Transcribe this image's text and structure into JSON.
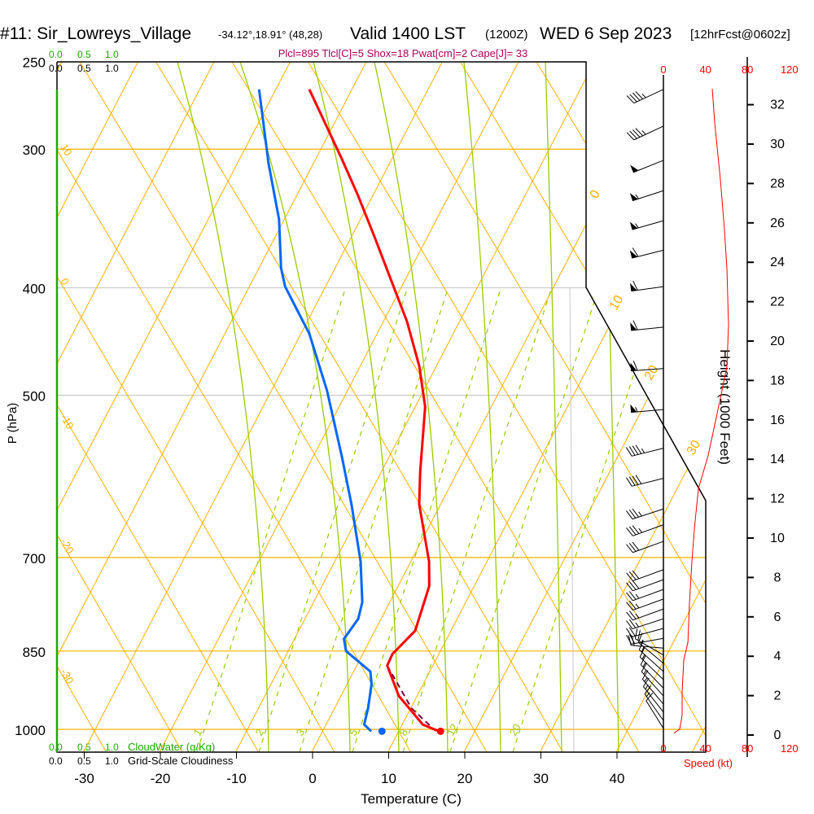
{
  "title": {
    "station": "#11: Sir_Lowreys_Village",
    "coords": "-34.12°,18.91° (48,28)",
    "valid": "Valid 1400 LST",
    "utc": "(1200Z)",
    "date": "WED 6 Sep 2023",
    "forecast": "[12hrFcst@0602z]"
  },
  "indices": "Plcl=895 Tlcl[C]=5 Shox=18 Pwat[cm]=2 Cape[J]= 33",
  "cloud": {
    "ticks": [
      "0.0",
      "0.5",
      "1.0"
    ],
    "cloudwater_label": "CloudWater (g/Kg)",
    "cloudiness_label": "Grid-Scale Cloudiness",
    "top_extra": "0",
    "cloudwater_color": "#1aaa00"
  },
  "chart_data": {
    "type": "line",
    "subtype": "skew-t log-p",
    "xlabel": "Temperature (C)",
    "ylabel": "P (hPa)",
    "x_ticks": [
      -30,
      -20,
      -10,
      0,
      10,
      20,
      30,
      40
    ],
    "pressure_ticks": [
      250,
      300,
      400,
      500,
      700,
      850,
      1000
    ],
    "xlim": [
      -33.6,
      51.7
    ],
    "plim": [
      1048,
      250
    ],
    "isotherm_labels": [
      "0",
      "10",
      "20",
      "30"
    ],
    "dry_adiabat_labels": [
      "10",
      "0",
      "-10",
      "-20",
      "-30"
    ],
    "mixing_ratio_labels": [
      "1",
      "2",
      "3",
      "5",
      "8",
      "12",
      "20"
    ],
    "temperature": {
      "name": "Temperature",
      "color": "#ff0000",
      "points": [
        [
          265,
          -45.6
        ],
        [
          306,
          -36.6
        ],
        [
          330,
          -32.0
        ],
        [
          359,
          -27.1
        ],
        [
          429,
          -16.9
        ],
        [
          471,
          -12.2
        ],
        [
          512,
          -8.7
        ],
        [
          586,
          -4.9
        ],
        [
          627,
          -2.8
        ],
        [
          706,
          2.4
        ],
        [
          743,
          4.1
        ],
        [
          815,
          5.3
        ],
        [
          855,
          3.9
        ],
        [
          876,
          4.0
        ],
        [
          933,
          7.6
        ],
        [
          990,
          12.7
        ],
        [
          1003,
          15.1
        ]
      ]
    },
    "dewpoint": {
      "name": "Dewpoint",
      "color": "#0066ff",
      "points": [
        [
          265,
          -52.2
        ],
        [
          309,
          -45.9
        ],
        [
          347,
          -40.7
        ],
        [
          384,
          -37.1
        ],
        [
          399,
          -35.3
        ],
        [
          440,
          -28.9
        ],
        [
          495,
          -22.7
        ],
        [
          567,
          -16.3
        ],
        [
          627,
          -11.7
        ],
        [
          706,
          -6.6
        ],
        [
          768,
          -3.6
        ],
        [
          795,
          -3.0
        ],
        [
          829,
          -3.5
        ],
        [
          850,
          -2.4
        ],
        [
          887,
          2.2
        ],
        [
          910,
          3.2
        ],
        [
          957,
          4.4
        ],
        [
          990,
          5.0
        ],
        [
          1004,
          6.4
        ]
      ]
    },
    "parcel": {
      "name": "Parcel",
      "color": "#800040",
      "points": [
        [
          876,
          4.0
        ],
        [
          957,
          10.1
        ],
        [
          1003,
          14.8
        ]
      ]
    },
    "surface_temperature": 15.5,
    "surface_dewpoint": 7.8,
    "wind_speed": {
      "xlabel": "Speed (kt)",
      "ylabel": "Height (1000 Feet)",
      "speed_ticks": [
        0,
        40,
        80,
        120
      ],
      "height_ticks": [
        0,
        2,
        4,
        6,
        8,
        10,
        12,
        14,
        16,
        18,
        20,
        22,
        24,
        26,
        28,
        30,
        32
      ],
      "color": "#ff0000",
      "points": [
        [
          32.8,
          46.5
        ],
        [
          31.1,
          48.8
        ],
        [
          28.2,
          54.3
        ],
        [
          25.7,
          58.1
        ],
        [
          23.7,
          60.5
        ],
        [
          20.8,
          62.0
        ],
        [
          18.7,
          60.5
        ],
        [
          17.1,
          54.3
        ],
        [
          14.2,
          42.6
        ],
        [
          12.5,
          33.3
        ],
        [
          10.5,
          29.5
        ],
        [
          8.8,
          27.1
        ],
        [
          6.7,
          24.8
        ],
        [
          4.7,
          23.3
        ],
        [
          3.8,
          19.4
        ],
        [
          2.2,
          17.8
        ],
        [
          1.0,
          17.8
        ],
        [
          0.3,
          15.5
        ],
        [
          0.1,
          10.1
        ]
      ]
    },
    "wind_barbs": [
      {
        "p": 265,
        "speed": 46,
        "dir": 245
      },
      {
        "p": 286,
        "speed": 47,
        "dir": 245
      },
      {
        "p": 307,
        "speed": 52,
        "dir": 248
      },
      {
        "p": 327,
        "speed": 57,
        "dir": 252
      },
      {
        "p": 348,
        "speed": 58,
        "dir": 254
      },
      {
        "p": 370,
        "speed": 60,
        "dir": 256
      },
      {
        "p": 399,
        "speed": 62,
        "dir": 262
      },
      {
        "p": 434,
        "speed": 62,
        "dir": 264
      },
      {
        "p": 473,
        "speed": 60,
        "dir": 266
      },
      {
        "p": 515,
        "speed": 55,
        "dir": 265
      },
      {
        "p": 558,
        "speed": 45,
        "dir": 256
      },
      {
        "p": 594,
        "speed": 40,
        "dir": 256
      },
      {
        "p": 633,
        "speed": 38,
        "dir": 252
      },
      {
        "p": 654,
        "speed": 35,
        "dir": 250
      },
      {
        "p": 677,
        "speed": 33,
        "dir": 250
      },
      {
        "p": 718,
        "speed": 30,
        "dir": 250
      },
      {
        "p": 733,
        "speed": 30,
        "dir": 250
      },
      {
        "p": 748,
        "speed": 28,
        "dir": 250
      },
      {
        "p": 763,
        "speed": 27,
        "dir": 250
      },
      {
        "p": 779,
        "speed": 26,
        "dir": 250
      },
      {
        "p": 795,
        "speed": 25,
        "dir": 252
      },
      {
        "p": 811,
        "speed": 24,
        "dir": 255
      },
      {
        "p": 828,
        "speed": 23,
        "dir": 260
      },
      {
        "p": 845,
        "speed": 22,
        "dir": 275
      },
      {
        "p": 857,
        "speed": 20,
        "dir": 300
      },
      {
        "p": 872,
        "speed": 18,
        "dir": 310
      },
      {
        "p": 887,
        "speed": 18,
        "dir": 312
      },
      {
        "p": 902,
        "speed": 18,
        "dir": 314
      },
      {
        "p": 918,
        "speed": 17,
        "dir": 316
      },
      {
        "p": 933,
        "speed": 17,
        "dir": 318
      },
      {
        "p": 949,
        "speed": 17,
        "dir": 320
      },
      {
        "p": 965,
        "speed": 16,
        "dir": 322
      },
      {
        "p": 982,
        "speed": 15,
        "dir": 325
      },
      {
        "p": 998,
        "speed": 12,
        "dir": 328
      }
    ]
  }
}
